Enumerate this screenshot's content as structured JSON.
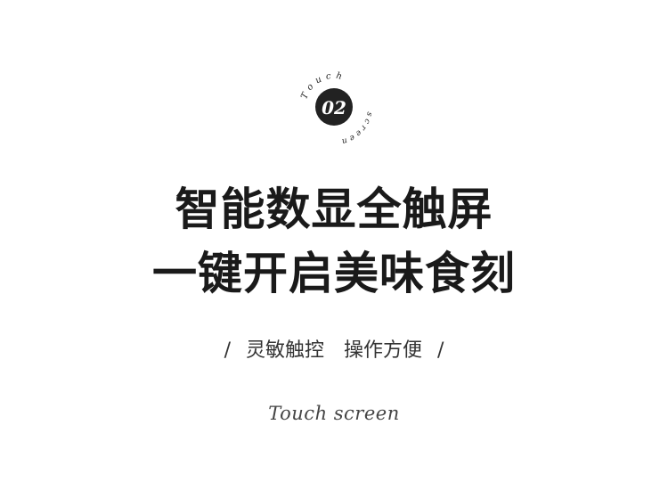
{
  "badge": {
    "number": "02",
    "arc_top": "Touch",
    "arc_bottom": "screen"
  },
  "headline": {
    "line1": "智能数显全触屏",
    "line2": "一键开启美味食刻"
  },
  "tagline": {
    "slash_left": "/",
    "part1": "灵敏触控",
    "part2": "操作方便",
    "slash_right": "/"
  },
  "script_text": "Touch screen"
}
